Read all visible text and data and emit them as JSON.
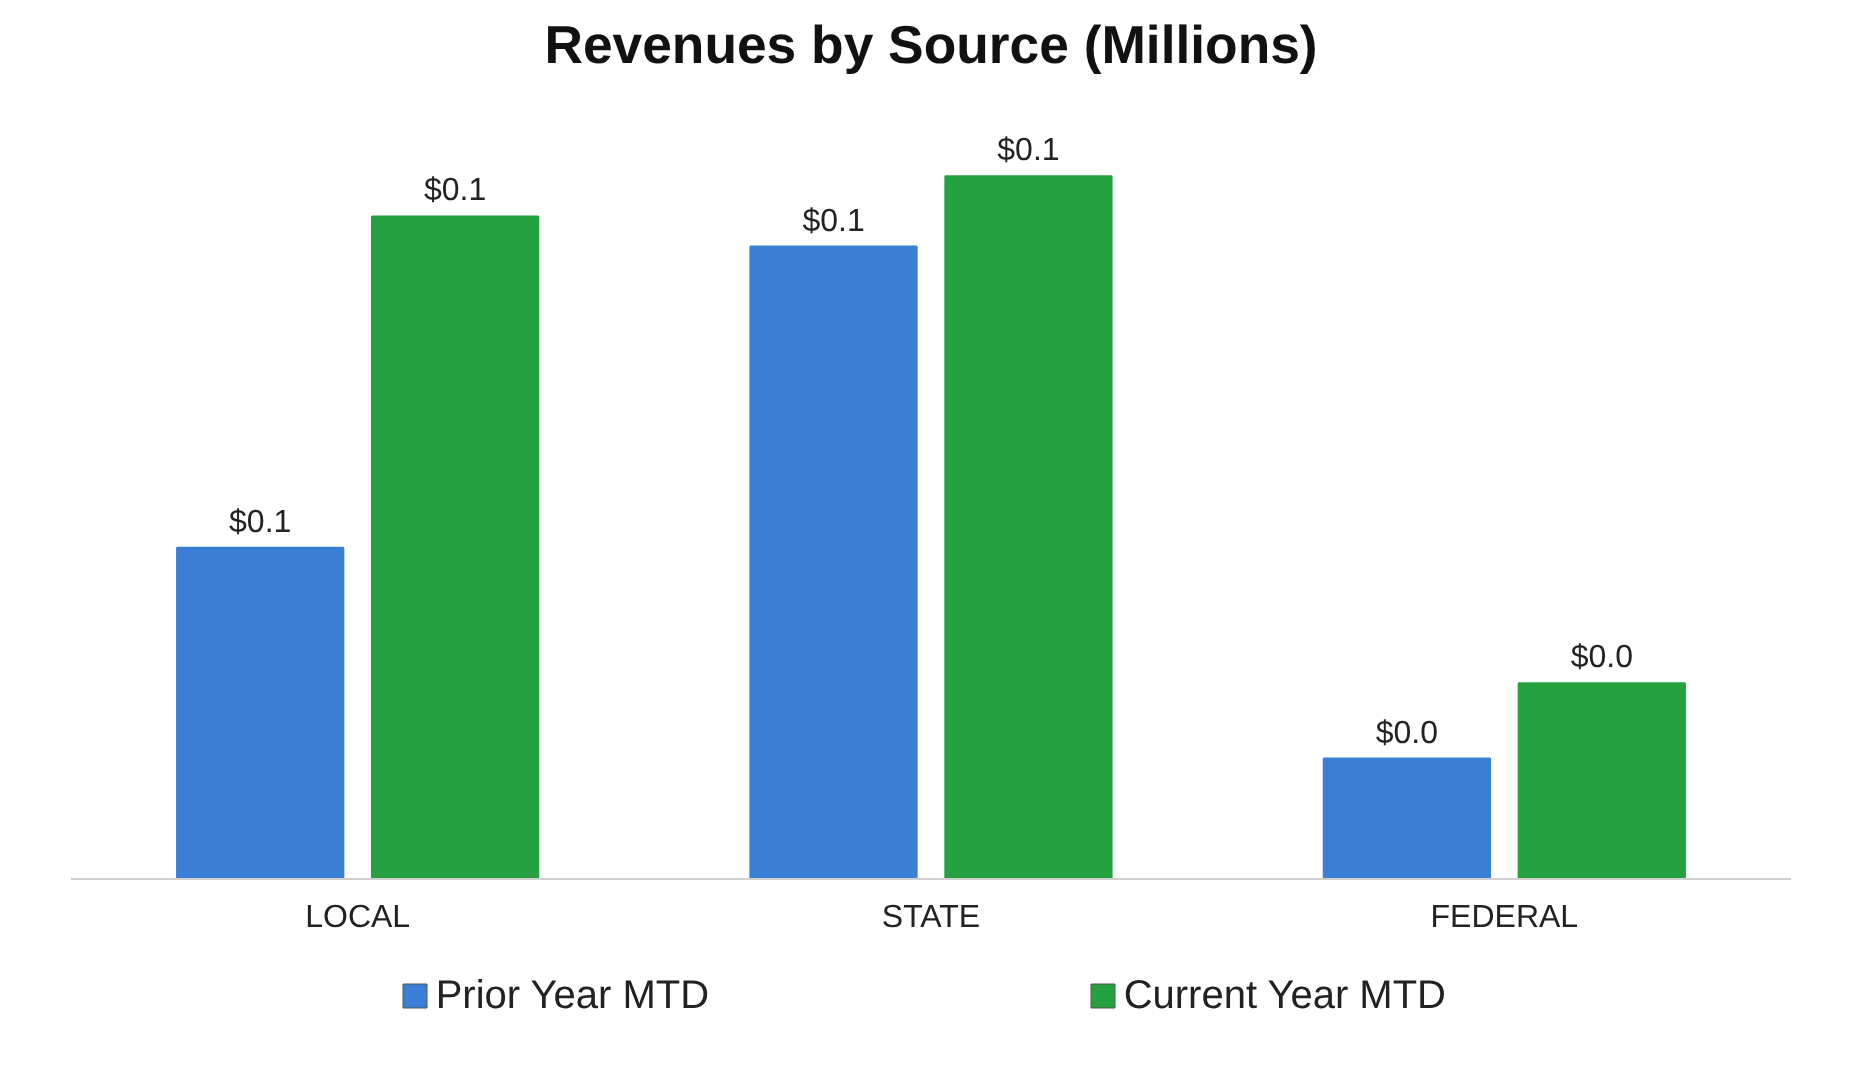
{
  "chart_data": {
    "type": "bar",
    "title": "Revenues by Source (Millions)",
    "categories": [
      "LOCAL",
      "STATE",
      "FEDERAL"
    ],
    "series": [
      {
        "name": "Prior Year MTD",
        "color": "#3a7fd6",
        "values": [
          0.066,
          0.126,
          0.024
        ],
        "value_labels": [
          "$0.1",
          "$0.1",
          "$0.0"
        ]
      },
      {
        "name": "Current Year MTD",
        "color": "#25a23f",
        "values": [
          0.132,
          0.14,
          0.039
        ],
        "value_labels": [
          "$0.1",
          "$0.1",
          "$0.0"
        ]
      }
    ],
    "legend": "bottom"
  }
}
